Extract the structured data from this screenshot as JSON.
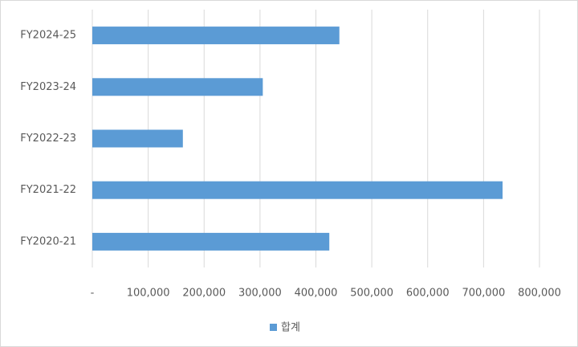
{
  "chart_data": {
    "type": "bar",
    "orientation": "horizontal",
    "categories": [
      "FY2020-21",
      "FY2021-22",
      "FY2022-23",
      "FY2023-24",
      "FY2024-25"
    ],
    "series": [
      {
        "name": "합계",
        "color": "#5b9bd5",
        "values": [
          424000,
          734000,
          162000,
          305000,
          442000
        ]
      }
    ],
    "xlim": [
      0,
      800000
    ],
    "xticks": [
      {
        "value": 0,
        "label": "-"
      },
      {
        "value": 100000,
        "label": "100,000"
      },
      {
        "value": 200000,
        "label": "200,000"
      },
      {
        "value": 300000,
        "label": "300,000"
      },
      {
        "value": 400000,
        "label": "400,000"
      },
      {
        "value": 500000,
        "label": "500,000"
      },
      {
        "value": 600000,
        "label": "600,000"
      },
      {
        "value": 700000,
        "label": "700,000"
      },
      {
        "value": 800000,
        "label": "800,000"
      }
    ],
    "grid": true,
    "legend": "bottom"
  }
}
